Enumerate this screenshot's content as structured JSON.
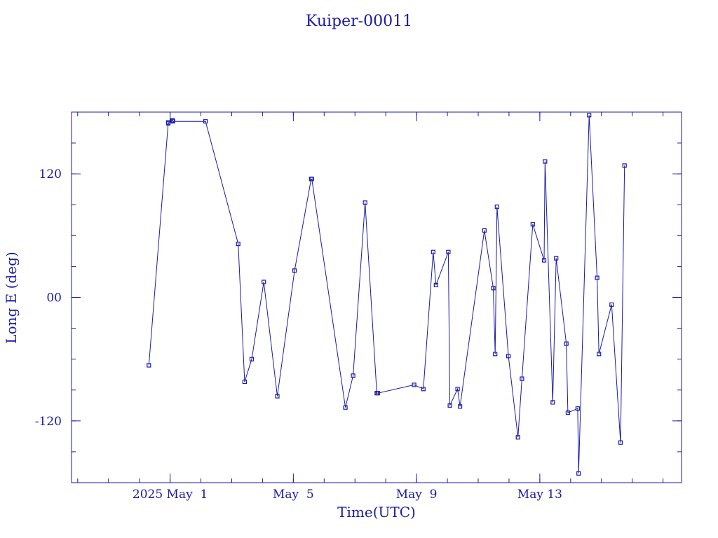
{
  "chart_data": {
    "type": "line",
    "title": "Kuiper-00011",
    "xlabel": "Time(UTC)",
    "ylabel": "Long E (deg)",
    "xlim": [
      -3.2,
      16.6
    ],
    "ylim": [
      -180,
      180
    ],
    "grid": false,
    "x_ticks": [
      {
        "value": 0,
        "label": "2025 May  1"
      },
      {
        "value": 4,
        "label": "May  5"
      },
      {
        "value": 8,
        "label": "May  9"
      },
      {
        "value": 12,
        "label": "May 13"
      }
    ],
    "y_ticks": [
      {
        "value": 120,
        "label": "120"
      },
      {
        "value": 0,
        "label": "00"
      },
      {
        "value": -120,
        "label": "-120"
      }
    ],
    "x_minor_step": 1,
    "y_minor_step": 30,
    "series": [
      {
        "color": "#1a1aa6",
        "points": [
          [
            -0.69,
            -66
          ],
          [
            -0.06,
            170
          ],
          [
            -0.06,
            169
          ],
          [
            0.08,
            172
          ],
          [
            0.09,
            171
          ],
          [
            1.15,
            171
          ],
          [
            2.21,
            52
          ],
          [
            2.42,
            -82
          ],
          [
            2.65,
            -60
          ],
          [
            3.04,
            15
          ],
          [
            3.48,
            -96
          ],
          [
            4.04,
            26
          ],
          [
            4.58,
            115
          ],
          [
            4.6,
            115
          ],
          [
            5.69,
            -107
          ],
          [
            5.94,
            -76
          ],
          [
            6.33,
            92
          ],
          [
            6.71,
            -93
          ],
          [
            6.74,
            -93
          ],
          [
            7.92,
            -85
          ],
          [
            8.22,
            -89
          ],
          [
            8.54,
            44
          ],
          [
            8.63,
            12
          ],
          [
            9.03,
            44
          ],
          [
            9.08,
            -105
          ],
          [
            9.33,
            -89
          ],
          [
            9.41,
            -106
          ],
          [
            10.2,
            65
          ],
          [
            10.49,
            9
          ],
          [
            10.55,
            -55
          ],
          [
            10.61,
            88
          ],
          [
            10.98,
            -57
          ],
          [
            11.29,
            -136
          ],
          [
            11.42,
            -79
          ],
          [
            11.77,
            71
          ],
          [
            12.14,
            36
          ],
          [
            12.17,
            132
          ],
          [
            12.42,
            -102
          ],
          [
            12.53,
            38
          ],
          [
            12.86,
            -45
          ],
          [
            12.91,
            -112
          ],
          [
            13.23,
            -108
          ],
          [
            13.26,
            -171
          ],
          [
            13.6,
            177
          ],
          [
            13.86,
            19
          ],
          [
            13.92,
            -55
          ],
          [
            14.33,
            -7
          ],
          [
            14.62,
            -141
          ],
          [
            14.75,
            128
          ]
        ]
      }
    ]
  }
}
